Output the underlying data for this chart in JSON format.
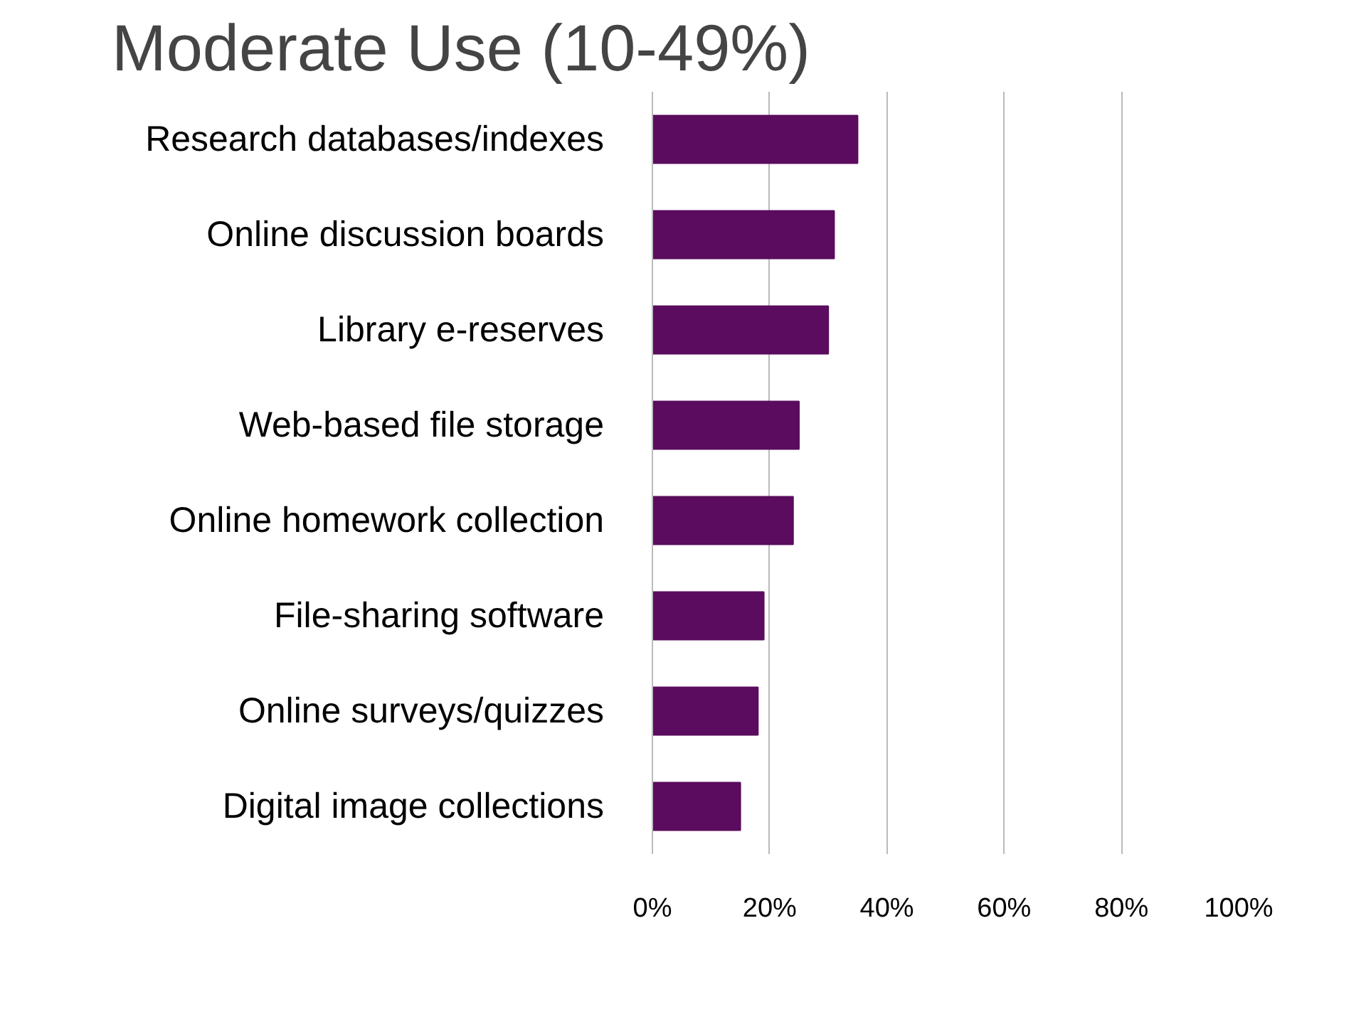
{
  "chart_data": {
    "type": "bar",
    "orientation": "horizontal",
    "title": "Moderate Use (10-49%)",
    "categories": [
      "Research databases/indexes",
      "Online discussion boards",
      "Library e-reserves",
      "Web-based file storage",
      "Online homework collection",
      "File-sharing software",
      "Online surveys/quizzes",
      "Digital image collections"
    ],
    "values": [
      35,
      31,
      30,
      25,
      24,
      19,
      18,
      15
    ],
    "color": "#5b0c5e",
    "xlim": [
      0,
      100
    ],
    "xticks": [
      {
        "value": 0,
        "label": "0%"
      },
      {
        "value": 20,
        "label": "20%"
      },
      {
        "value": 40,
        "label": "40%"
      },
      {
        "value": 60,
        "label": "60%"
      },
      {
        "value": 80,
        "label": "80%"
      },
      {
        "value": 100,
        "label": "100%"
      }
    ],
    "grid": "x"
  }
}
